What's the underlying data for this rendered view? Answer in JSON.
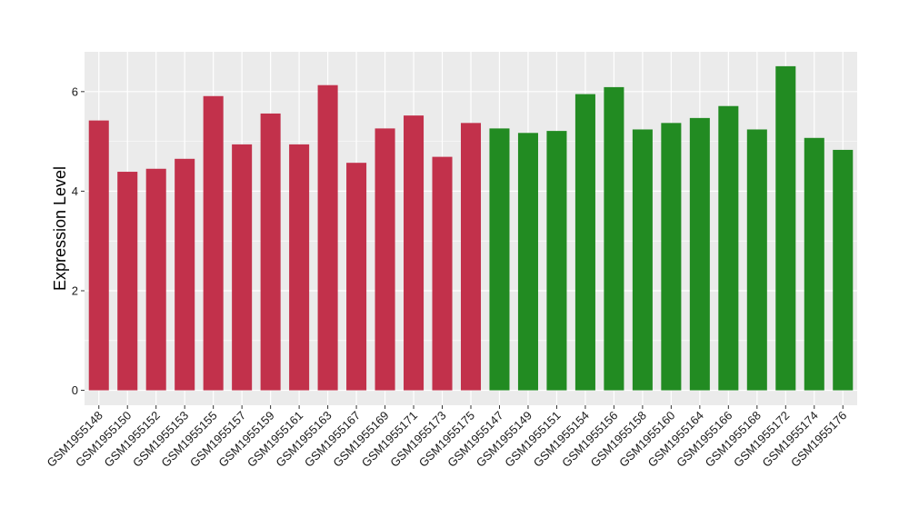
{
  "chart_data": {
    "type": "bar",
    "title": "",
    "xlabel": "",
    "ylabel": "Expression Level",
    "ylim": [
      -0.3,
      6.8
    ],
    "yticks": [
      0,
      2,
      4,
      6
    ],
    "grid": true,
    "legend": "none",
    "categories": [
      "GSM1955148",
      "GSM1955150",
      "GSM1955152",
      "GSM1955153",
      "GSM1955155",
      "GSM1955157",
      "GSM1955159",
      "GSM1955161",
      "GSM1955163",
      "GSM1955167",
      "GSM1955169",
      "GSM1955171",
      "GSM1955173",
      "GSM1955175",
      "GSM1955147",
      "GSM1955149",
      "GSM1955151",
      "GSM1955154",
      "GSM1955156",
      "GSM1955158",
      "GSM1955160",
      "GSM1955164",
      "GSM1955166",
      "GSM1955168",
      "GSM1955172",
      "GSM1955174",
      "GSM1955176"
    ],
    "values": [
      5.42,
      4.39,
      4.45,
      4.65,
      5.91,
      4.94,
      5.56,
      4.94,
      6.13,
      4.57,
      5.26,
      5.52,
      4.69,
      5.37,
      5.26,
      5.17,
      5.21,
      5.95,
      6.09,
      5.24,
      5.37,
      5.47,
      5.71,
      5.24,
      6.51,
      5.07,
      4.83
    ],
    "bar_colors": [
      "#c2314b",
      "#c2314b",
      "#c2314b",
      "#c2314b",
      "#c2314b",
      "#c2314b",
      "#c2314b",
      "#c2314b",
      "#c2314b",
      "#c2314b",
      "#c2314b",
      "#c2314b",
      "#c2314b",
      "#c2314b",
      "#228b22",
      "#228b22",
      "#228b22",
      "#228b22",
      "#228b22",
      "#228b22",
      "#228b22",
      "#228b22",
      "#228b22",
      "#228b22",
      "#228b22",
      "#228b22",
      "#228b22"
    ],
    "panel_background": "#ebebeb",
    "grid_color": "#ffffff"
  }
}
